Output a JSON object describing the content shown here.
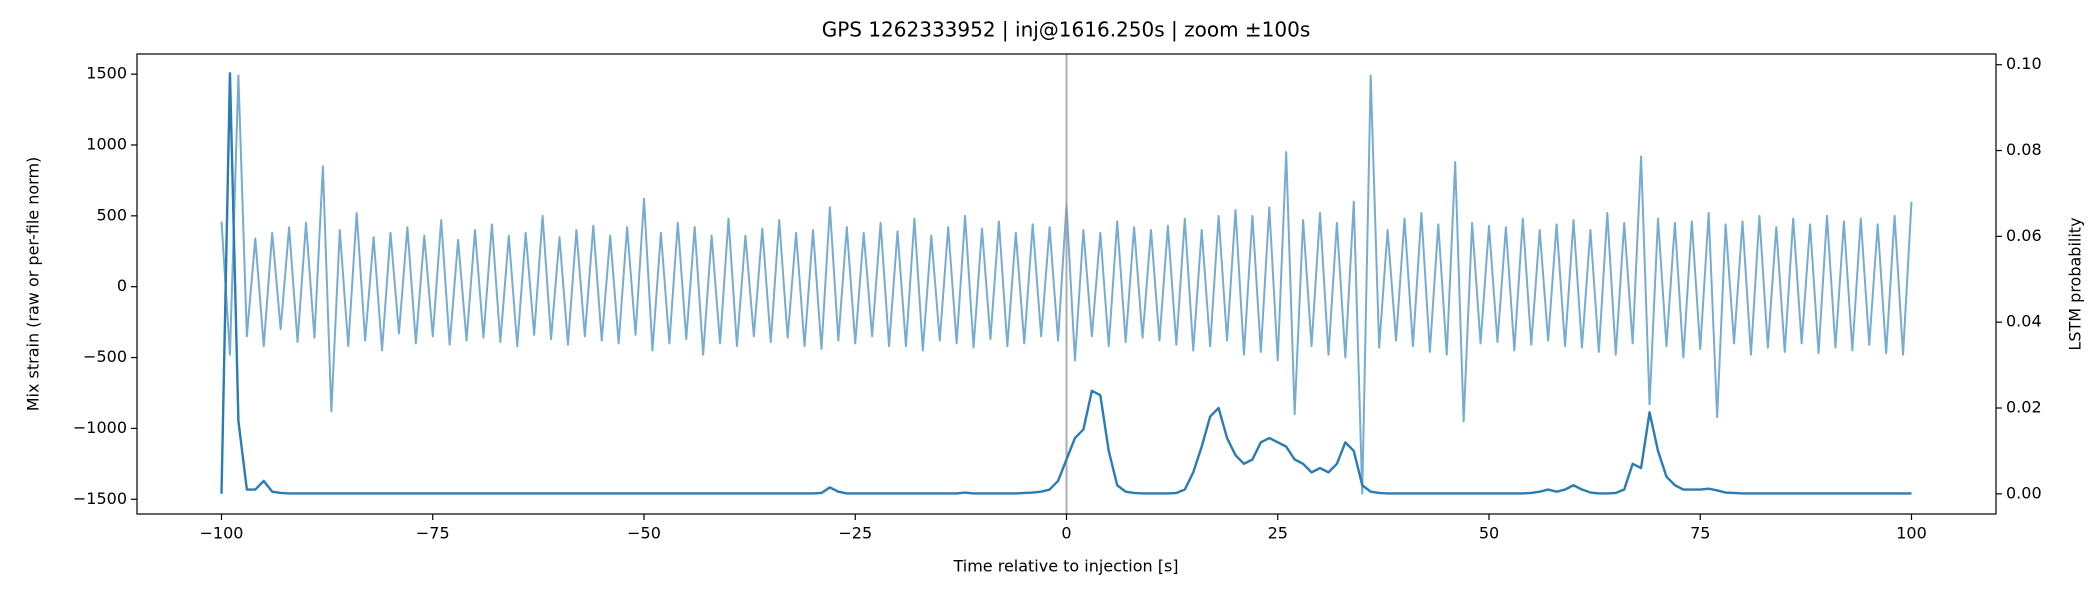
{
  "chart_data": {
    "type": "line",
    "title": "GPS 1262333952 | inj@1616.250s | zoom ±100s",
    "x_label": "Time relative to injection [s]",
    "y_label": "Mix strain (raw or per-file norm)",
    "y2_label": "LSTM probability",
    "x": [
      -100,
      -99,
      -98,
      -97,
      -96,
      -95,
      -94,
      -93,
      -92,
      -91,
      -90,
      -89,
      -88,
      -87,
      -86,
      -85,
      -84,
      -83,
      -82,
      -81,
      -80,
      -79,
      -78,
      -77,
      -76,
      -75,
      -74,
      -73,
      -72,
      -71,
      -70,
      -69,
      -68,
      -67,
      -66,
      -65,
      -64,
      -63,
      -62,
      -61,
      -60,
      -59,
      -58,
      -57,
      -56,
      -55,
      -54,
      -53,
      -52,
      -51,
      -50,
      -49,
      -48,
      -47,
      -46,
      -45,
      -44,
      -43,
      -42,
      -41,
      -40,
      -39,
      -38,
      -37,
      -36,
      -35,
      -34,
      -33,
      -32,
      -31,
      -30,
      -29,
      -28,
      -27,
      -26,
      -25,
      -24,
      -23,
      -22,
      -21,
      -20,
      -19,
      -18,
      -17,
      -16,
      -15,
      -14,
      -13,
      -12,
      -11,
      -10,
      -9,
      -8,
      -7,
      -6,
      -5,
      -4,
      -3,
      -2,
      -1,
      0,
      1,
      2,
      3,
      4,
      5,
      6,
      7,
      8,
      9,
      10,
      11,
      12,
      13,
      14,
      15,
      16,
      17,
      18,
      19,
      20,
      21,
      22,
      23,
      24,
      25,
      26,
      27,
      28,
      29,
      30,
      31,
      32,
      33,
      34,
      35,
      36,
      37,
      38,
      39,
      40,
      41,
      42,
      43,
      44,
      45,
      46,
      47,
      48,
      49,
      50,
      51,
      52,
      53,
      54,
      55,
      56,
      57,
      58,
      59,
      60,
      61,
      62,
      63,
      64,
      65,
      66,
      67,
      68,
      69,
      70,
      71,
      72,
      73,
      74,
      75,
      76,
      77,
      78,
      79,
      80,
      81,
      82,
      83,
      84,
      85,
      86,
      87,
      88,
      89,
      90,
      91,
      92,
      93,
      94,
      95,
      96,
      97,
      98,
      99,
      100
    ],
    "series": [
      {
        "name": "Mix strain",
        "color": "#5f9ec9",
        "axis": "y",
        "values": [
          460,
          -480,
          1490,
          -350,
          340,
          -420,
          380,
          -300,
          420,
          -390,
          450,
          -360,
          850,
          -880,
          400,
          -420,
          520,
          -380,
          350,
          -450,
          380,
          -330,
          420,
          -400,
          360,
          -350,
          470,
          -410,
          330,
          -380,
          400,
          -360,
          440,
          -390,
          360,
          -420,
          380,
          -340,
          500,
          -370,
          350,
          -410,
          400,
          -350,
          430,
          -380,
          360,
          -400,
          420,
          -340,
          620,
          -450,
          380,
          -400,
          450,
          -370,
          420,
          -480,
          360,
          -400,
          480,
          -420,
          360,
          -350,
          410,
          -390,
          470,
          -360,
          380,
          -420,
          400,
          -440,
          560,
          -380,
          420,
          -400,
          380,
          -350,
          450,
          -420,
          390,
          -420,
          480,
          -450,
          360,
          -380,
          420,
          -400,
          500,
          -430,
          410,
          -370,
          460,
          -420,
          380,
          -400,
          440,
          -350,
          420,
          -380,
          580,
          -520,
          400,
          -350,
          380,
          -420,
          460,
          -390,
          420,
          -360,
          400,
          -380,
          430,
          -410,
          480,
          -450,
          400,
          -420,
          500,
          -380,
          540,
          -480,
          500,
          -460,
          560,
          -520,
          950,
          -900,
          470,
          -420,
          520,
          -480,
          450,
          -500,
          600,
          -1460,
          1490,
          -430,
          400,
          -380,
          480,
          -420,
          520,
          -460,
          440,
          -480,
          880,
          -950,
          450,
          -400,
          430,
          -390,
          420,
          -450,
          480,
          -410,
          400,
          -380,
          440,
          -420,
          470,
          -430,
          400,
          -460,
          520,
          -480,
          450,
          -400,
          920,
          -830,
          480,
          -420,
          450,
          -500,
          460,
          -440,
          520,
          -920,
          440,
          -400,
          460,
          -480,
          500,
          -430,
          420,
          -460,
          480,
          -400,
          440,
          -470,
          500,
          -430,
          460,
          -450,
          480,
          -410,
          440,
          -470,
          500,
          -480,
          600
        ]
      },
      {
        "name": "LSTM probability",
        "color": "#2b7bb4",
        "axis": "y2",
        "values": [
          0,
          0.098,
          0.017,
          0.001,
          0.001,
          0.003,
          0.0005,
          0.0002,
          0.0001,
          0.0001,
          0.0001,
          0.0001,
          0.0001,
          0.0001,
          0.0001,
          0.0001,
          0.0001,
          0.0001,
          0.0001,
          0.0001,
          0.0001,
          0.0001,
          0.0001,
          0.0001,
          0.0001,
          0.0001,
          0.0001,
          0.0001,
          0.0001,
          0.0001,
          0.0001,
          0.0001,
          0.0001,
          0.0001,
          0.0001,
          0.0001,
          0.0001,
          0.0001,
          0.0001,
          0.0001,
          0.0001,
          0.0001,
          0.0001,
          0.0001,
          0.0001,
          0.0001,
          0.0001,
          0.0001,
          0.0001,
          0.0001,
          0.0001,
          0.0001,
          0.0001,
          0.0001,
          0.0001,
          0.0001,
          0.0001,
          0.0001,
          0.0001,
          0.0001,
          0.0001,
          0.0001,
          0.0001,
          0.0001,
          0.0001,
          0.0001,
          0.0001,
          0.0001,
          0.0001,
          0.0001,
          0.0001,
          0.0002,
          0.0015,
          0.0005,
          0.0001,
          0.0001,
          0.0001,
          0.0001,
          0.0001,
          0.0001,
          0.0001,
          0.0001,
          0.0001,
          0.0001,
          0.0001,
          0.0001,
          0.0001,
          0.0001,
          0.0003,
          0.0001,
          0.0001,
          0.0001,
          0.0001,
          0.0001,
          0.0001,
          0.0002,
          0.0003,
          0.0005,
          0.001,
          0.003,
          0.008,
          0.013,
          0.015,
          0.024,
          0.023,
          0.01,
          0.002,
          0.0005,
          0.0002,
          0.0001,
          0.0001,
          0.0001,
          0.0001,
          0.0002,
          0.001,
          0.005,
          0.011,
          0.018,
          0.02,
          0.013,
          0.009,
          0.007,
          0.008,
          0.012,
          0.013,
          0.012,
          0.011,
          0.008,
          0.007,
          0.005,
          0.006,
          0.005,
          0.007,
          0.012,
          0.01,
          0.002,
          0.0005,
          0.0002,
          0.0001,
          0.0001,
          0.0001,
          0.0001,
          0.0001,
          0.0001,
          0.0001,
          0.0001,
          0.0001,
          0.0001,
          0.0001,
          0.0001,
          0.0001,
          0.0001,
          0.0001,
          0.0001,
          0.0001,
          0.0002,
          0.0005,
          0.001,
          0.0005,
          0.001,
          0.002,
          0.001,
          0.0003,
          0.0001,
          0.0001,
          0.0002,
          0.001,
          0.007,
          0.006,
          0.019,
          0.01,
          0.004,
          0.002,
          0.001,
          0.001,
          0.001,
          0.0012,
          0.0008,
          0.0003,
          0.0002,
          0.0001,
          0.0001,
          0.0001,
          0.0001,
          0.0001,
          0.0001,
          0.0001,
          0.0001,
          0.0001,
          0.0001,
          0.0001,
          0.0001,
          0.0001,
          0.0001,
          0.0001,
          0.0001,
          0.0001,
          0.0001,
          0.0001,
          0.0001,
          0.0001
        ]
      }
    ],
    "vline_x": 0,
    "vline_color": "#999999",
    "xlim": [
      -110,
      110
    ],
    "xticks": [
      {
        "value": -100,
        "label": "−100"
      },
      {
        "value": -75,
        "label": "−75"
      },
      {
        "value": -50,
        "label": "−50"
      },
      {
        "value": -25,
        "label": "−25"
      },
      0,
      25,
      50,
      75,
      100
    ],
    "ylim": [
      -1604,
      1642
    ],
    "yticks": [
      {
        "value": -1500,
        "label": "−1500"
      },
      {
        "value": -1000,
        "label": "−1000"
      },
      {
        "value": -500,
        "label": "−500"
      },
      0,
      500,
      1000,
      1500
    ],
    "y2lim": [
      -0.0047,
      0.1025
    ],
    "y2ticks": [
      {
        "value": 0,
        "label": "0.00"
      },
      {
        "value": 0.02,
        "label": "0.02"
      },
      {
        "value": 0.04,
        "label": "0.04"
      },
      {
        "value": 0.06,
        "label": "0.06"
      },
      {
        "value": 0.08,
        "label": "0.08"
      },
      {
        "value": 0.1,
        "label": "0.10"
      }
    ]
  }
}
